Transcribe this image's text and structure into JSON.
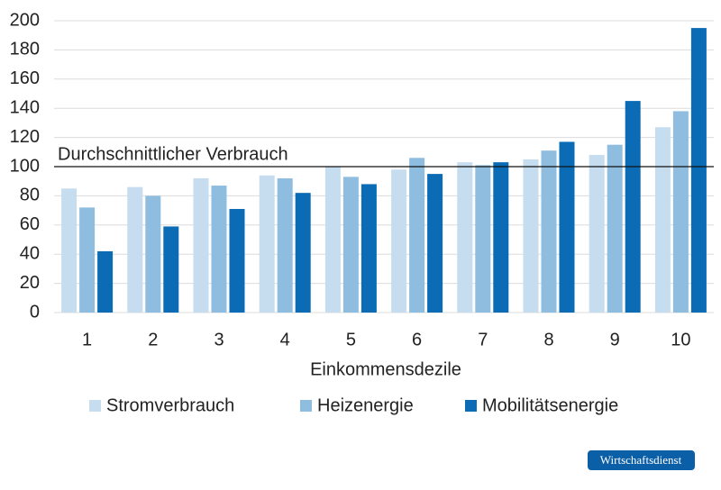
{
  "chart_data": {
    "type": "bar",
    "x_label": "Einkommensdezile",
    "categories": [
      "1",
      "2",
      "3",
      "4",
      "5",
      "6",
      "7",
      "8",
      "9",
      "10"
    ],
    "series": [
      {
        "name": "Stromverbrauch",
        "color": "#c6dcef",
        "values": [
          85,
          86,
          92,
          94,
          100,
          98,
          103,
          105,
          108,
          127
        ]
      },
      {
        "name": "Heizenergie",
        "color": "#8fbde0",
        "values": [
          72,
          80,
          87,
          92,
          93,
          106,
          101,
          111,
          115,
          138
        ]
      },
      {
        "name": "Mobilitätsenergie",
        "color": "#0b6cb5",
        "values": [
          42,
          59,
          71,
          82,
          88,
          95,
          103,
          117,
          145,
          195
        ]
      }
    ],
    "reference_line": {
      "value": 100,
      "label": "Durchschnittlicher Verbrauch"
    },
    "ylim": [
      0,
      200
    ],
    "yticks": [
      0,
      20,
      40,
      60,
      80,
      100,
      120,
      140,
      160,
      180,
      200
    ],
    "grid": true,
    "legend": "bottom",
    "source": "Wirtschaftsdienst"
  }
}
